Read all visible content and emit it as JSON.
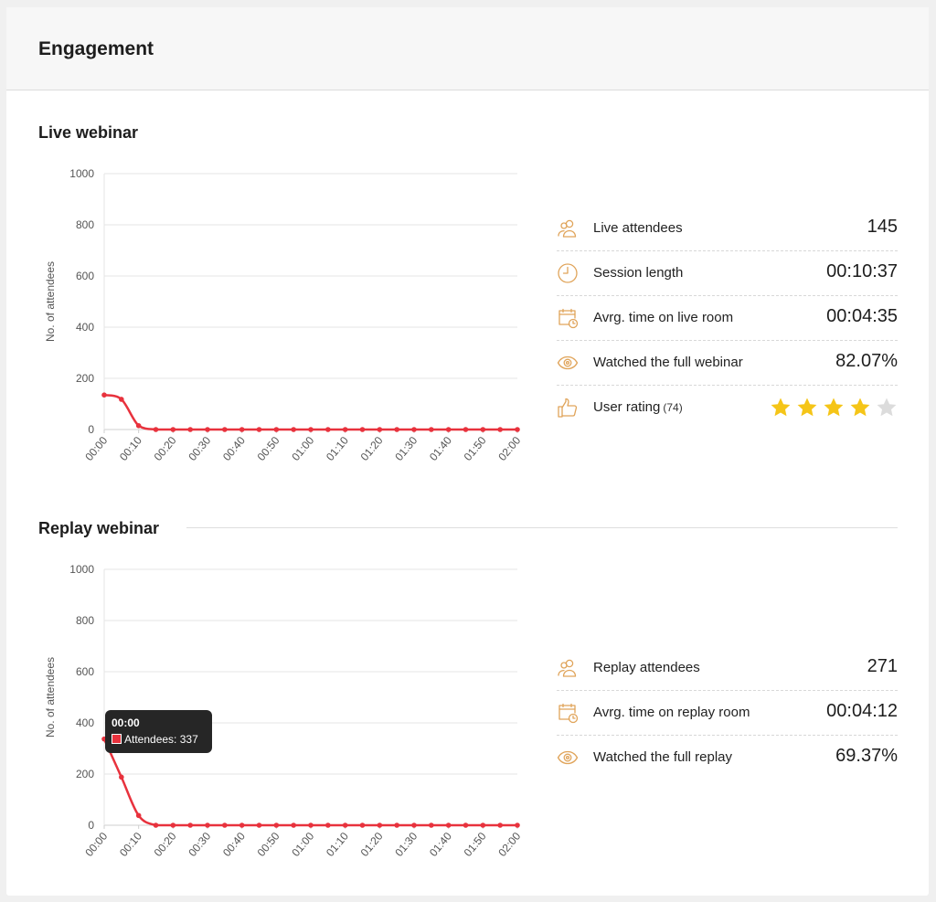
{
  "header": {
    "title": "Engagement"
  },
  "live": {
    "title": "Live webinar",
    "stats": [
      {
        "icon": "attendees-icon",
        "label": "Live attendees",
        "value": "145"
      },
      {
        "icon": "clock-icon",
        "label": "Session length",
        "value": "00:10:37"
      },
      {
        "icon": "calendar-clock-icon",
        "label": "Avrg. time on live room",
        "value": "00:04:35"
      },
      {
        "icon": "eye-icon",
        "label": "Watched the full webinar",
        "value": "82.07%"
      },
      {
        "icon": "thumbs-up-icon",
        "label": "User rating",
        "count": "(74)",
        "rating": 4,
        "rating_max": 5
      }
    ]
  },
  "replay": {
    "title": "Replay webinar",
    "stats": [
      {
        "icon": "attendees-icon",
        "label": "Replay attendees",
        "value": "271"
      },
      {
        "icon": "calendar-clock-icon",
        "label": "Avrg. time on replay room",
        "value": "00:04:12"
      },
      {
        "icon": "eye-icon",
        "label": "Watched the full replay",
        "value": "69.37%"
      }
    ],
    "tooltip": {
      "title": "00:00",
      "label": "Attendees",
      "value": "337"
    }
  },
  "colors": {
    "series": "#e8323d",
    "icon": "#e0a45a",
    "star_on": "#f5c518",
    "star_off": "#dcdcdc"
  },
  "chart_data": [
    {
      "type": "line",
      "ylabel": "No. of attendees",
      "ylim": [
        0,
        1000
      ],
      "yticks": [
        0,
        200,
        400,
        600,
        800,
        1000
      ],
      "grid": true,
      "x": [
        "00:00",
        "00:05",
        "00:10",
        "00:15",
        "00:20",
        "00:25",
        "00:30",
        "00:35",
        "00:40",
        "00:45",
        "00:50",
        "00:55",
        "01:00",
        "01:05",
        "01:10",
        "01:15",
        "01:20",
        "01:25",
        "01:30",
        "01:35",
        "01:40",
        "01:45",
        "01:50",
        "01:55",
        "02:00"
      ],
      "xticklabels": [
        "00:00",
        "00:10",
        "00:20",
        "00:30",
        "00:40",
        "00:50",
        "01:00",
        "01:10",
        "01:20",
        "01:30",
        "01:40",
        "01:50",
        "02:00"
      ],
      "series": [
        {
          "values": [
            135,
            118,
            15,
            0,
            0,
            0,
            0,
            0,
            0,
            0,
            0,
            0,
            0,
            0,
            0,
            0,
            0,
            0,
            0,
            0,
            0,
            0,
            0,
            0,
            0
          ]
        }
      ]
    },
    {
      "type": "line",
      "ylabel": "No. of attendees",
      "ylim": [
        0,
        1000
      ],
      "yticks": [
        0,
        200,
        400,
        600,
        800,
        1000
      ],
      "grid": true,
      "x": [
        "00:00",
        "00:05",
        "00:10",
        "00:15",
        "00:20",
        "00:25",
        "00:30",
        "00:35",
        "00:40",
        "00:45",
        "00:50",
        "00:55",
        "01:00",
        "01:05",
        "01:10",
        "01:15",
        "01:20",
        "01:25",
        "01:30",
        "01:35",
        "01:40",
        "01:45",
        "01:50",
        "01:55",
        "02:00"
      ],
      "xticklabels": [
        "00:00",
        "00:10",
        "00:20",
        "00:30",
        "00:40",
        "00:50",
        "01:00",
        "01:10",
        "01:20",
        "01:30",
        "01:40",
        "01:50",
        "02:00"
      ],
      "series": [
        {
          "name": "Attendees",
          "values": [
            337,
            188,
            38,
            0,
            0,
            0,
            0,
            0,
            0,
            0,
            0,
            0,
            0,
            0,
            0,
            0,
            0,
            0,
            0,
            0,
            0,
            0,
            0,
            0,
            0
          ]
        }
      ]
    }
  ]
}
